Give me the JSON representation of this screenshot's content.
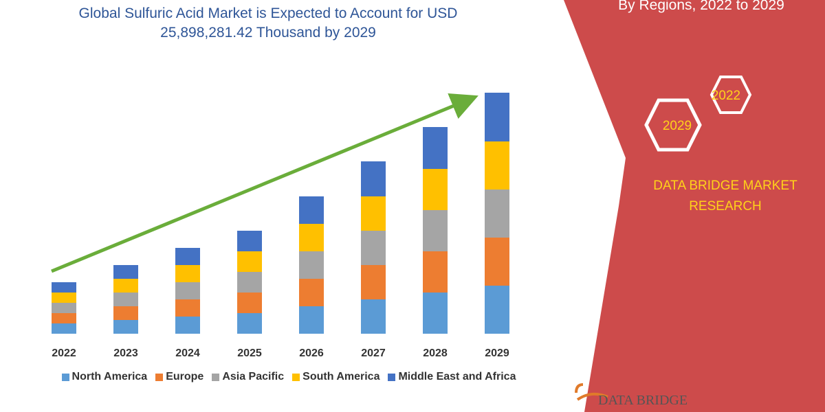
{
  "chart_data": {
    "type": "stacked_bar",
    "title": "Global Sulfuric Acid Market is Expected to Account for USD 25,898,281.42 Thousand by 2029",
    "categories": [
      "2022",
      "2023",
      "2024",
      "2025",
      "2026",
      "2027",
      "2028",
      "2029"
    ],
    "series": [
      {
        "name": "North America",
        "color": "#5b9bd5",
        "values": [
          15,
          20,
          25,
          30,
          40,
          50,
          60,
          70
        ]
      },
      {
        "name": "Europe",
        "color": "#ed7d31",
        "values": [
          15,
          20,
          25,
          30,
          40,
          50,
          60,
          70
        ]
      },
      {
        "name": "Asia Pacific",
        "color": "#a5a5a5",
        "values": [
          15,
          20,
          25,
          30,
          40,
          50,
          60,
          70
        ]
      },
      {
        "name": "South America",
        "color": "#ffc000",
        "values": [
          15,
          20,
          25,
          30,
          40,
          50,
          60,
          70
        ]
      },
      {
        "name": "Middle East and Africa",
        "color": "#4472c4",
        "values": [
          15,
          20,
          25,
          30,
          40,
          51,
          61,
          71
        ]
      }
    ],
    "ylim": [
      0,
      360
    ]
  },
  "side_panel": {
    "heading": "By Regions, 2022 to 2029",
    "hexagons": [
      "2022",
      "2029"
    ],
    "brand": "DATA BRIDGE MARKET RESEARCH"
  },
  "footer_logo": "DATA BRIDGE"
}
